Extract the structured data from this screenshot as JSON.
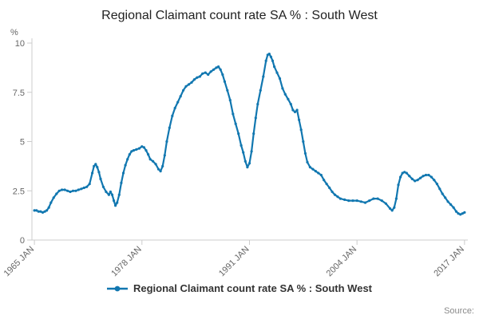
{
  "footer": {
    "source_label": "Source:"
  },
  "chart_data": {
    "type": "line",
    "title": "Regional Claimant count rate SA % : South West",
    "xlabel": "",
    "ylabel": "%",
    "xlim": [
      1964.7,
      2017.4
    ],
    "ylim": [
      0,
      10
    ],
    "yticks": [
      0,
      2.5,
      5,
      7.5,
      10
    ],
    "ytick_labels": [
      "0",
      "2.5",
      "5",
      "7.5",
      "10"
    ],
    "xticks": [
      1965,
      1978,
      1991,
      2004,
      2017
    ],
    "xtick_labels": [
      "1965 JAN",
      "1978 JAN",
      "1991 JAN",
      "2004 JAN",
      "2017 JAN"
    ],
    "grid": false,
    "legend_position": "bottom",
    "series": [
      {
        "name": "Regional Claimant count rate SA % : South West",
        "color": "#1177b0",
        "points": [
          [
            1965.0,
            1.5
          ],
          [
            1965.25,
            1.5
          ],
          [
            1965.5,
            1.45
          ],
          [
            1965.75,
            1.45
          ],
          [
            1966.0,
            1.4
          ],
          [
            1966.25,
            1.45
          ],
          [
            1966.5,
            1.5
          ],
          [
            1966.75,
            1.65
          ],
          [
            1967.0,
            1.9
          ],
          [
            1967.33,
            2.15
          ],
          [
            1967.67,
            2.35
          ],
          [
            1968.0,
            2.5
          ],
          [
            1968.33,
            2.55
          ],
          [
            1968.67,
            2.55
          ],
          [
            1969.0,
            2.5
          ],
          [
            1969.33,
            2.45
          ],
          [
            1969.67,
            2.5
          ],
          [
            1970.0,
            2.5
          ],
          [
            1970.33,
            2.55
          ],
          [
            1970.67,
            2.6
          ],
          [
            1971.0,
            2.65
          ],
          [
            1971.33,
            2.7
          ],
          [
            1971.67,
            2.85
          ],
          [
            1972.0,
            3.4
          ],
          [
            1972.2,
            3.75
          ],
          [
            1972.4,
            3.85
          ],
          [
            1972.6,
            3.7
          ],
          [
            1972.8,
            3.45
          ],
          [
            1973.0,
            3.1
          ],
          [
            1973.33,
            2.7
          ],
          [
            1973.67,
            2.45
          ],
          [
            1974.0,
            2.3
          ],
          [
            1974.2,
            2.45
          ],
          [
            1974.4,
            2.3
          ],
          [
            1974.6,
            2.0
          ],
          [
            1974.8,
            1.75
          ],
          [
            1975.0,
            1.9
          ],
          [
            1975.25,
            2.3
          ],
          [
            1975.5,
            2.9
          ],
          [
            1975.75,
            3.4
          ],
          [
            1976.0,
            3.8
          ],
          [
            1976.25,
            4.1
          ],
          [
            1976.5,
            4.35
          ],
          [
            1976.75,
            4.5
          ],
          [
            1977.0,
            4.55
          ],
          [
            1977.33,
            4.6
          ],
          [
            1977.67,
            4.65
          ],
          [
            1978.0,
            4.75
          ],
          [
            1978.25,
            4.7
          ],
          [
            1978.5,
            4.55
          ],
          [
            1978.75,
            4.35
          ],
          [
            1979.0,
            4.1
          ],
          [
            1979.33,
            4.0
          ],
          [
            1979.67,
            3.85
          ],
          [
            1980.0,
            3.6
          ],
          [
            1980.25,
            3.5
          ],
          [
            1980.5,
            3.75
          ],
          [
            1980.75,
            4.3
          ],
          [
            1981.0,
            5.0
          ],
          [
            1981.33,
            5.7
          ],
          [
            1981.67,
            6.3
          ],
          [
            1982.0,
            6.7
          ],
          [
            1982.33,
            7.0
          ],
          [
            1982.67,
            7.3
          ],
          [
            1983.0,
            7.6
          ],
          [
            1983.33,
            7.8
          ],
          [
            1983.67,
            7.9
          ],
          [
            1984.0,
            8.0
          ],
          [
            1984.33,
            8.15
          ],
          [
            1984.67,
            8.25
          ],
          [
            1985.0,
            8.3
          ],
          [
            1985.33,
            8.45
          ],
          [
            1985.67,
            8.5
          ],
          [
            1986.0,
            8.4
          ],
          [
            1986.33,
            8.55
          ],
          [
            1986.67,
            8.65
          ],
          [
            1987.0,
            8.75
          ],
          [
            1987.25,
            8.8
          ],
          [
            1987.5,
            8.65
          ],
          [
            1987.75,
            8.4
          ],
          [
            1988.0,
            8.05
          ],
          [
            1988.33,
            7.6
          ],
          [
            1988.67,
            7.1
          ],
          [
            1989.0,
            6.4
          ],
          [
            1989.33,
            5.9
          ],
          [
            1989.67,
            5.4
          ],
          [
            1990.0,
            4.8
          ],
          [
            1990.25,
            4.45
          ],
          [
            1990.5,
            4.0
          ],
          [
            1990.75,
            3.7
          ],
          [
            1991.0,
            3.9
          ],
          [
            1991.25,
            4.5
          ],
          [
            1991.5,
            5.4
          ],
          [
            1991.75,
            6.2
          ],
          [
            1992.0,
            6.9
          ],
          [
            1992.33,
            7.6
          ],
          [
            1992.67,
            8.3
          ],
          [
            1993.0,
            9.1
          ],
          [
            1993.2,
            9.4
          ],
          [
            1993.4,
            9.45
          ],
          [
            1993.6,
            9.3
          ],
          [
            1993.8,
            9.1
          ],
          [
            1994.0,
            8.8
          ],
          [
            1994.33,
            8.5
          ],
          [
            1994.67,
            8.2
          ],
          [
            1995.0,
            7.7
          ],
          [
            1995.33,
            7.4
          ],
          [
            1995.67,
            7.15
          ],
          [
            1996.0,
            6.9
          ],
          [
            1996.25,
            6.6
          ],
          [
            1996.5,
            6.5
          ],
          [
            1996.75,
            6.6
          ],
          [
            1997.0,
            6.1
          ],
          [
            1997.25,
            5.6
          ],
          [
            1997.5,
            5.0
          ],
          [
            1997.75,
            4.4
          ],
          [
            1998.0,
            3.95
          ],
          [
            1998.33,
            3.7
          ],
          [
            1998.67,
            3.6
          ],
          [
            1999.0,
            3.5
          ],
          [
            1999.33,
            3.4
          ],
          [
            1999.67,
            3.3
          ],
          [
            2000.0,
            3.05
          ],
          [
            2000.33,
            2.85
          ],
          [
            2000.67,
            2.65
          ],
          [
            2001.0,
            2.45
          ],
          [
            2001.33,
            2.3
          ],
          [
            2001.67,
            2.2
          ],
          [
            2002.0,
            2.1
          ],
          [
            2002.5,
            2.05
          ],
          [
            2003.0,
            2.0
          ],
          [
            2003.5,
            2.0
          ],
          [
            2004.0,
            2.0
          ],
          [
            2004.5,
            1.95
          ],
          [
            2005.0,
            1.9
          ],
          [
            2005.5,
            2.0
          ],
          [
            2006.0,
            2.1
          ],
          [
            2006.5,
            2.1
          ],
          [
            2007.0,
            2.0
          ],
          [
            2007.5,
            1.85
          ],
          [
            2008.0,
            1.6
          ],
          [
            2008.25,
            1.5
          ],
          [
            2008.5,
            1.65
          ],
          [
            2008.75,
            2.1
          ],
          [
            2009.0,
            2.8
          ],
          [
            2009.25,
            3.2
          ],
          [
            2009.5,
            3.4
          ],
          [
            2009.75,
            3.45
          ],
          [
            2010.0,
            3.4
          ],
          [
            2010.33,
            3.25
          ],
          [
            2010.67,
            3.1
          ],
          [
            2011.0,
            3.0
          ],
          [
            2011.33,
            3.05
          ],
          [
            2011.67,
            3.15
          ],
          [
            2012.0,
            3.25
          ],
          [
            2012.33,
            3.3
          ],
          [
            2012.67,
            3.3
          ],
          [
            2013.0,
            3.2
          ],
          [
            2013.33,
            3.05
          ],
          [
            2013.67,
            2.85
          ],
          [
            2014.0,
            2.6
          ],
          [
            2014.33,
            2.35
          ],
          [
            2014.67,
            2.15
          ],
          [
            2015.0,
            1.95
          ],
          [
            2015.33,
            1.8
          ],
          [
            2015.67,
            1.65
          ],
          [
            2016.0,
            1.45
          ],
          [
            2016.25,
            1.35
          ],
          [
            2016.5,
            1.3
          ],
          [
            2016.75,
            1.35
          ],
          [
            2017.0,
            1.4
          ]
        ]
      }
    ]
  }
}
